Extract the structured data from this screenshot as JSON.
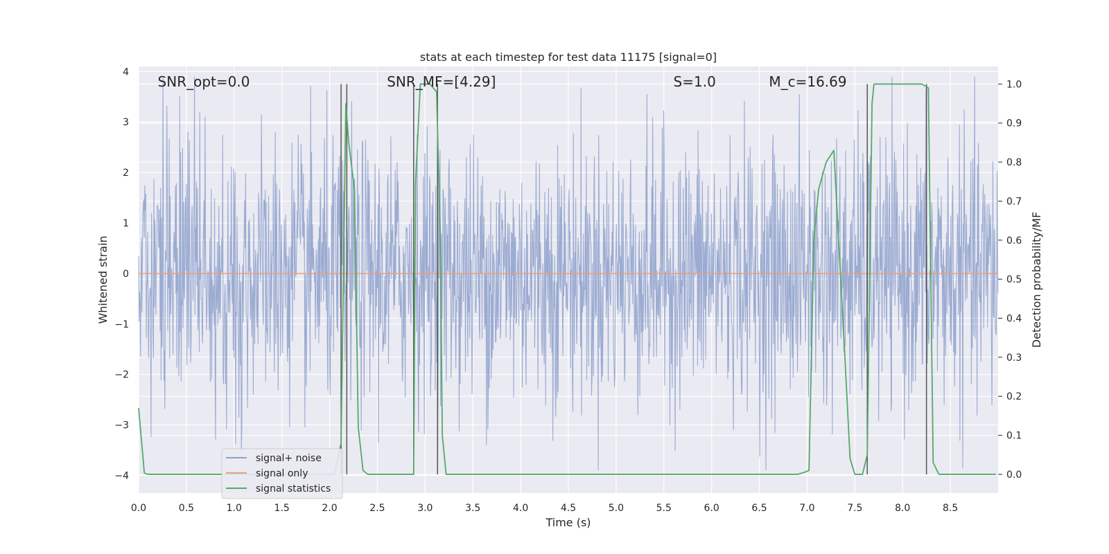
{
  "chart_data": {
    "type": "line",
    "title": "stats at each timestep for test data 11175 [signal=0]",
    "xlabel": "Time (s)",
    "ylabel_left": "Whitened strain",
    "ylabel_right": "Detection probability/MF",
    "xlim": [
      0.0,
      9.0
    ],
    "ylim_left": [
      -4.35,
      4.1
    ],
    "ylim_right": [
      -0.048,
      1.045
    ],
    "x_ticks": [
      "0.0",
      "0.5",
      "1.0",
      "1.5",
      "2.0",
      "2.5",
      "3.0",
      "3.5",
      "4.0",
      "4.5",
      "5.0",
      "5.5",
      "6.0",
      "6.5",
      "7.0",
      "7.5",
      "8.0",
      "8.5"
    ],
    "x_tick_values": [
      0.0,
      0.5,
      1.0,
      1.5,
      2.0,
      2.5,
      3.0,
      3.5,
      4.0,
      4.5,
      5.0,
      5.5,
      6.0,
      6.5,
      7.0,
      7.5,
      8.0,
      8.5
    ],
    "y_ticks_left": [
      "4",
      "3",
      "2",
      "1",
      "0",
      "−1",
      "−2",
      "−3",
      "−4"
    ],
    "y_tick_values_left": [
      4,
      3,
      2,
      1,
      0,
      -1,
      -2,
      -3,
      -4
    ],
    "y_ticks_right": [
      "1.0",
      "0.9",
      "0.8",
      "0.7",
      "0.6",
      "0.5",
      "0.4",
      "0.3",
      "0.2",
      "0.1",
      "0.0"
    ],
    "y_tick_values_right": [
      1.0,
      0.9,
      0.8,
      0.7,
      0.6,
      0.5,
      0.4,
      0.3,
      0.2,
      0.1,
      0.0
    ],
    "grid": true,
    "legend_placement": "lower-left",
    "annotations": [
      {
        "text": "SNR_opt=0.0",
        "x": 0.2
      },
      {
        "text": "SNR_MF=[4.29]",
        "x": 2.6
      },
      {
        "text": "S=1.0",
        "x": 5.6
      },
      {
        "text": "M_c=16.69",
        "x": 6.6
      }
    ],
    "annotations_y": 3.7,
    "series": [
      {
        "name": "signal+ noise",
        "axis": "left",
        "color": "#8da0cb",
        "style": "noise",
        "typical_abs": 1.3,
        "max_abs": 3.9
      },
      {
        "name": "signal only",
        "axis": "left",
        "color": "#e5a07f",
        "x": [
          0.0,
          9.0
        ],
        "values": [
          0.0,
          0.0
        ]
      },
      {
        "name": "signal statistics",
        "axis": "right",
        "color": "#55a868",
        "x": [
          0.0,
          0.06,
          0.1,
          2.0,
          2.05,
          2.12,
          2.17,
          2.2,
          2.26,
          2.3,
          2.35,
          2.4,
          2.83,
          2.88,
          2.9,
          2.95,
          3.05,
          3.12,
          3.16,
          3.18,
          3.22,
          6.9,
          6.97,
          7.02,
          7.07,
          7.12,
          7.2,
          7.28,
          7.33,
          7.4,
          7.45,
          7.5,
          7.58,
          7.63,
          7.68,
          7.7,
          8.2,
          8.27,
          8.32,
          8.38,
          8.98
        ],
        "values": [
          0.17,
          0.003,
          0.0,
          0.0,
          0.0,
          0.08,
          0.95,
          0.85,
          0.73,
          0.12,
          0.01,
          0.0,
          0.0,
          0.0,
          0.75,
          1.0,
          1.0,
          0.98,
          0.6,
          0.1,
          0.0,
          0.0,
          0.005,
          0.01,
          0.6,
          0.73,
          0.8,
          0.83,
          0.6,
          0.28,
          0.04,
          0.0,
          0.0,
          0.05,
          0.95,
          1.0,
          1.0,
          0.99,
          0.03,
          0.0,
          0.0
        ]
      }
    ],
    "vlines": [
      2.12,
      2.18,
      2.88,
      3.13,
      7.63,
      8.25
    ],
    "vline_color": "#555555"
  }
}
